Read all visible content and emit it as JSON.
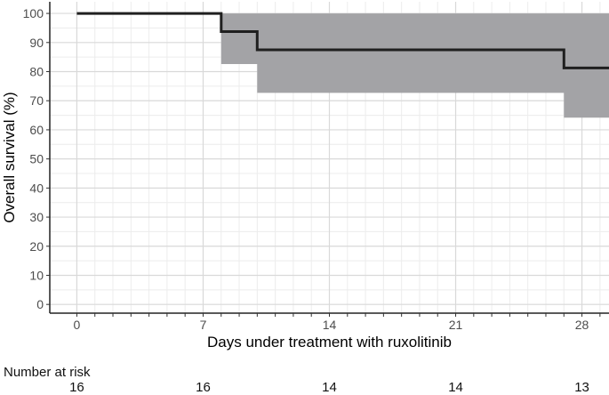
{
  "chart_data": {
    "type": "line",
    "step": true,
    "xlabel": "Days under treatment with ruxolitinib",
    "ylabel": "Overall survival (%)",
    "xlim": [
      -1.5,
      29.5
    ],
    "ylim": [
      -3,
      104
    ],
    "xticks": [
      0,
      7,
      14,
      21,
      28
    ],
    "yticks": [
      0,
      10,
      20,
      30,
      40,
      50,
      60,
      70,
      80,
      90,
      100
    ],
    "grid": true,
    "legend": "none",
    "series": [
      {
        "x": [
          0,
          8,
          10,
          27,
          29.5
        ],
        "y": [
          100,
          93.75,
          87.5,
          81.25,
          81.25
        ],
        "ci_lower": [
          100,
          82.6,
          72.7,
          64.2,
          64.2
        ],
        "ci_upper": [
          100,
          100,
          100,
          100,
          100
        ],
        "color": "#1f1f1f",
        "ci_color": "#a3a3a6"
      }
    ],
    "risk_table": {
      "title": "Number at risk",
      "times": [
        0,
        7,
        14,
        21,
        28
      ],
      "counts": [
        "16",
        "16",
        "14",
        "14",
        "13"
      ]
    }
  }
}
